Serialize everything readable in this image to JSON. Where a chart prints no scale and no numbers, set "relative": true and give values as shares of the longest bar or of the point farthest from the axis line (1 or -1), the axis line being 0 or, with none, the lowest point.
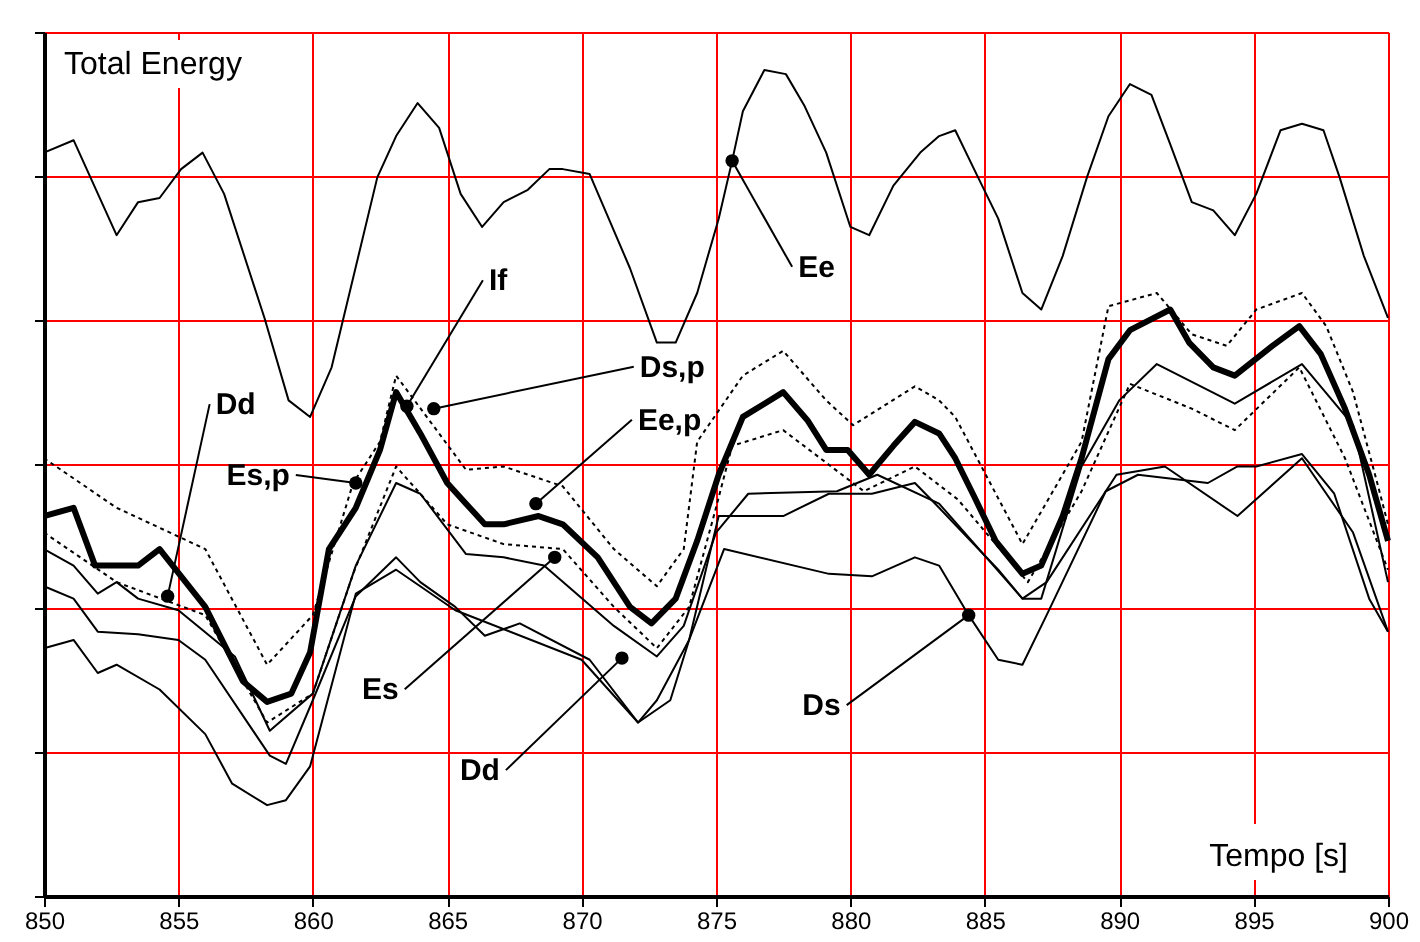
{
  "chart_data": {
    "type": "line",
    "relative": true,
    "ylabel": "Total Energy",
    "xlabel": "Tempo [s]",
    "xlim": [
      850,
      900
    ],
    "xticks": [
      850,
      855,
      860,
      865,
      870,
      875,
      880,
      885,
      890,
      895,
      900
    ],
    "grid": true,
    "legend": false,
    "marker": "none",
    "series": [
      {
        "color": "#000000",
        "line_style": "solid",
        "x": [
          850,
          851.1,
          852.7,
          853.5,
          854.3,
          855.1,
          855.9,
          856.7,
          858.2,
          859.1,
          859.9,
          860.7,
          862.4,
          863.1,
          863.9,
          864.7,
          865.5,
          866.3,
          867.1,
          868.0,
          868.8,
          869.3,
          870.3,
          871.8,
          872.8,
          873.5,
          874.3,
          875.1,
          875.6,
          876.0,
          876.8,
          877.6,
          878.3,
          879.1,
          880.0,
          880.7,
          881.6,
          882.6,
          883.3,
          883.9,
          884.6,
          885.5,
          886.4,
          887.1,
          887.9,
          888.8,
          889.6,
          890.4,
          891.2,
          891.9,
          892.7,
          893.5,
          894.3,
          895.1,
          896.0,
          896.8,
          897.6,
          898.2,
          899.1,
          900
        ],
        "values": [
          0.9,
          0.915,
          0.8,
          0.84,
          0.845,
          0.88,
          0.9,
          0.85,
          0.7,
          0.6,
          0.58,
          0.64,
          0.87,
          0.92,
          0.96,
          0.93,
          0.85,
          0.81,
          0.84,
          0.855,
          0.88,
          0.88,
          0.874,
          0.76,
          0.67,
          0.67,
          0.73,
          0.82,
          0.89,
          0.95,
          1,
          0.995,
          0.956,
          0.9,
          0.81,
          0.8,
          0.86,
          0.9,
          0.92,
          0.927,
          0.88,
          0.82,
          0.73,
          0.71,
          0.775,
          0.87,
          0.944,
          0.983,
          0.97,
          0.91,
          0.84,
          0.83,
          0.8,
          0.85,
          0.927,
          0.935,
          0.927,
          0.87,
          0.775,
          0.7
        ]
      },
      {
        "color": "#000000",
        "line_style": "solid",
        "x": [
          850,
          851.1,
          851.9,
          853.5,
          854.3,
          856.0,
          857.4,
          858.3,
          859.2,
          859.9,
          860.6,
          861.6,
          862.5,
          863.1,
          864.0,
          865.0,
          865.7,
          866.4,
          867.1,
          868.4,
          869.3,
          870.6,
          871.8,
          872.6,
          873.5,
          874.3,
          875.1,
          876.0,
          877.5,
          878.4,
          879.1,
          879.9,
          880.7,
          881.6,
          882.4,
          883.3,
          883.9,
          884.6,
          885.4,
          886.4,
          887.1,
          887.9,
          888.6,
          889.6,
          890.4,
          891.9,
          892.6,
          893.5,
          894.3,
          895.7,
          896.7,
          897.5,
          898.4,
          899.3,
          900
        ],
        "values": [
          0.46,
          0.47,
          0.4,
          0.4,
          0.42,
          0.35,
          0.26,
          0.235,
          0.245,
          0.295,
          0.42,
          0.47,
          0.54,
          0.61,
          0.56,
          0.5,
          0.475,
          0.45,
          0.45,
          0.46,
          0.45,
          0.41,
          0.35,
          0.33,
          0.36,
          0.43,
          0.51,
          0.58,
          0.61,
          0.576,
          0.54,
          0.54,
          0.51,
          0.545,
          0.574,
          0.56,
          0.53,
          0.484,
          0.43,
          0.39,
          0.4,
          0.46,
          0.53,
          0.65,
          0.685,
          0.71,
          0.67,
          0.64,
          0.63,
          0.666,
          0.69,
          0.656,
          0.59,
          0.51,
          0.43
        ]
      },
      {
        "color": "#000000",
        "line_style": "dotted",
        "x": [
          850,
          852.7,
          856,
          858.3,
          860,
          861.5,
          862.5,
          863.1,
          865.7,
          867.1,
          869.3,
          871.2,
          872.8,
          873.8,
          874.3,
          876.0,
          877.5,
          879.1,
          880.1,
          882.4,
          883.3,
          883.9,
          886.4,
          888.6,
          889.6,
          891.4,
          892.7,
          894,
          895.1,
          896.8,
          897.7,
          898.7,
          899.6,
          900
        ],
        "values": [
          0.53,
          0.47,
          0.42,
          0.28,
          0.34,
          0.5,
          0.55,
          0.63,
          0.516,
          0.52,
          0.496,
          0.42,
          0.375,
          0.42,
          0.55,
          0.63,
          0.66,
          0.6,
          0.57,
          0.617,
          0.6,
          0.58,
          0.426,
          0.55,
          0.714,
          0.73,
          0.68,
          0.666,
          0.71,
          0.73,
          0.69,
          0.61,
          0.5,
          0.45
        ]
      },
      {
        "color": "#000000",
        "line_style": "dotted",
        "x": [
          850,
          852.7,
          856,
          858.3,
          860,
          861.5,
          863.1,
          865,
          867.1,
          869.3,
          871.2,
          872.8,
          874,
          875,
          875.6,
          877.5,
          880.5,
          882.4,
          884,
          886.6,
          888.6,
          890.4,
          892.7,
          894.3,
          896.7,
          898.4,
          900
        ],
        "values": [
          0.44,
          0.38,
          0.34,
          0.21,
          0.245,
          0.39,
          0.52,
          0.45,
          0.426,
          0.42,
          0.35,
          0.3,
          0.35,
          0.47,
          0.545,
          0.564,
          0.49,
          0.52,
          0.48,
          0.38,
          0.49,
          0.62,
          0.59,
          0.564,
          0.64,
          0.53,
          0.395
        ]
      },
      {
        "color": "#000000",
        "line_style": "solid",
        "x": [
          850,
          851.1,
          852,
          852.7,
          853.5,
          855,
          857.1,
          858.4,
          860,
          861.6,
          863.1,
          864,
          865.7,
          867.1,
          868.6,
          871.2,
          872.8,
          873.8,
          875,
          876.2,
          879.5,
          881,
          883.3,
          886.4,
          887.1,
          888.6,
          890,
          891.4,
          894.3,
          896.8,
          898.7,
          900
        ],
        "values": [
          0.42,
          0.4,
          0.366,
          0.38,
          0.36,
          0.346,
          0.29,
          0.2,
          0.245,
          0.4,
          0.5,
          0.487,
          0.414,
          0.41,
          0.4,
          0.327,
          0.29,
          0.327,
          0.44,
          0.487,
          0.49,
          0.51,
          0.475,
          0.36,
          0.36,
          0.52,
          0.6,
          0.644,
          0.596,
          0.644,
          0.57,
          0.38
        ]
      },
      {
        "color": "#000000",
        "line_style": "solid",
        "x": [
          850,
          851.1,
          852,
          853.5,
          855,
          856,
          858.4,
          859,
          860,
          861.6,
          863.1,
          864,
          865.3,
          866.4,
          867.7,
          870.3,
          872.1,
          872.8,
          874,
          875.1,
          877.5,
          879.2,
          880.8,
          882.4,
          883.3,
          885.5,
          886.4,
          887.3,
          889.9,
          891.7,
          894.4,
          896.8,
          898.7,
          900
        ],
        "values": [
          0.375,
          0.36,
          0.32,
          0.317,
          0.31,
          0.286,
          0.17,
          0.16,
          0.237,
          0.363,
          0.41,
          0.38,
          0.35,
          0.315,
          0.33,
          0.286,
          0.21,
          0.237,
          0.31,
          0.46,
          0.46,
          0.487,
          0.487,
          0.5,
          0.47,
          0.395,
          0.36,
          0.38,
          0.51,
          0.52,
          0.46,
          0.53,
          0.44,
          0.32
        ]
      },
      {
        "color": "#000000",
        "line_style": "solid",
        "x": [
          850,
          851.1,
          852,
          852.7,
          854.3,
          856,
          857,
          858.3,
          859,
          859.9,
          861.6,
          863.1,
          865.3,
          870,
          872.1,
          873.3,
          874,
          875.3,
          879.2,
          880.8,
          882.4,
          883.3,
          884.4,
          885.5,
          886.4,
          887.3,
          889.5,
          890.7,
          893.3,
          894.4,
          895.1,
          896.8,
          898,
          899.3,
          900
        ],
        "values": [
          0.3,
          0.31,
          0.27,
          0.28,
          0.25,
          0.196,
          0.136,
          0.11,
          0.116,
          0.157,
          0.366,
          0.395,
          0.346,
          0.286,
          0.21,
          0.237,
          0.31,
          0.42,
          0.39,
          0.387,
          0.41,
          0.4,
          0.34,
          0.286,
          0.28,
          0.34,
          0.49,
          0.51,
          0.5,
          0.52,
          0.52,
          0.535,
          0.487,
          0.36,
          0.32
        ]
      }
    ],
    "annotations": [
      {
        "text": "Ee",
        "x": 875.6,
        "y": 0.89
      },
      {
        "text": "If",
        "x": 863.5,
        "y": 0.593
      },
      {
        "text": "Ds,p",
        "x": 864.5,
        "y": 0.59
      },
      {
        "text": "Ee,p",
        "x": 868.3,
        "y": 0.475
      },
      {
        "text": "Es,p",
        "x": 861.6,
        "y": 0.5
      },
      {
        "text": "Dd",
        "x": 854.6,
        "y": 0.363
      },
      {
        "text": "Es",
        "x": 869.0,
        "y": 0.41
      },
      {
        "text": "Dd",
        "x": 871.5,
        "y": 0.288
      },
      {
        "text": "Ds",
        "x": 884.4,
        "y": 0.34
      }
    ]
  }
}
